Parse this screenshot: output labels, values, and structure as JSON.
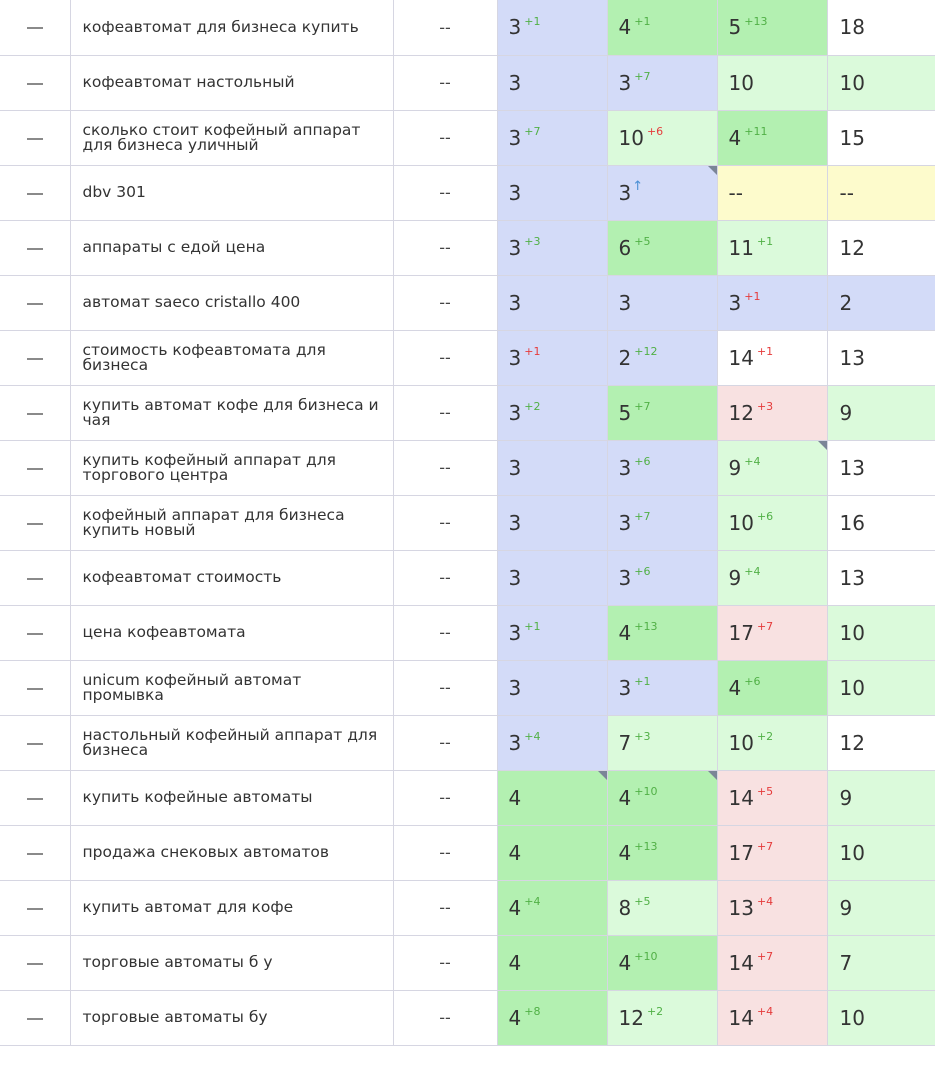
{
  "colors": {
    "blue": "#d3dbf8",
    "green": "#b3f0b1",
    "light_green": "#dbfadb",
    "pink": "#f8e1e1",
    "yellow": "#fdfbcc",
    "up": "#51b046",
    "down": "#e53b3b"
  },
  "rows": [
    {
      "keyword": "кофеавтомат для бизнеса купить",
      "mid": "--",
      "c1": {
        "value": "3",
        "change": "+1",
        "dir": "up",
        "bg": "blue"
      },
      "c2": {
        "value": "4",
        "change": "+1",
        "dir": "up",
        "bg": "green"
      },
      "c3": {
        "value": "5",
        "change": "+13",
        "dir": "up",
        "bg": "green"
      },
      "c4": {
        "value": "18",
        "bg": "white"
      }
    },
    {
      "keyword": "кофеавтомат настольный",
      "mid": "--",
      "c1": {
        "value": "3",
        "change": "",
        "dir": "",
        "bg": "blue"
      },
      "c2": {
        "value": "3",
        "change": "+7",
        "dir": "up",
        "bg": "blue"
      },
      "c3": {
        "value": "10",
        "change": "",
        "dir": "",
        "bg": "light_green"
      },
      "c4": {
        "value": "10",
        "bg": "light_green"
      }
    },
    {
      "keyword": "сколько стоит кофейный аппарат для бизнеса уличный",
      "mid": "--",
      "c1": {
        "value": "3",
        "change": "+7",
        "dir": "up",
        "bg": "blue"
      },
      "c2": {
        "value": "10",
        "change": "+6",
        "dir": "down",
        "bg": "light_green"
      },
      "c3": {
        "value": "4",
        "change": "+11",
        "dir": "up",
        "bg": "green"
      },
      "c4": {
        "value": "15",
        "bg": "white"
      }
    },
    {
      "keyword": "dbv 301",
      "mid": "--",
      "c1": {
        "value": "3",
        "change": "",
        "dir": "",
        "bg": "blue"
      },
      "c2": {
        "value": "3",
        "change": "↑",
        "dir": "new",
        "bg": "blue",
        "corner": true
      },
      "c3": {
        "value": "--",
        "change": "",
        "dir": "",
        "bg": "yellow"
      },
      "c4": {
        "value": "--",
        "bg": "yellow"
      }
    },
    {
      "keyword": "аппараты с едой цена",
      "mid": "--",
      "c1": {
        "value": "3",
        "change": "+3",
        "dir": "up",
        "bg": "blue"
      },
      "c2": {
        "value": "6",
        "change": "+5",
        "dir": "up",
        "bg": "green"
      },
      "c3": {
        "value": "11",
        "change": "+1",
        "dir": "up",
        "bg": "light_green"
      },
      "c4": {
        "value": "12",
        "bg": "white"
      }
    },
    {
      "keyword": "автомат saeco cristallo 400",
      "mid": "--",
      "c1": {
        "value": "3",
        "change": "",
        "dir": "",
        "bg": "blue"
      },
      "c2": {
        "value": "3",
        "change": "",
        "dir": "",
        "bg": "blue"
      },
      "c3": {
        "value": "3",
        "change": "+1",
        "dir": "down",
        "bg": "blue"
      },
      "c4": {
        "value": "2",
        "bg": "blue"
      }
    },
    {
      "keyword": "стоимость кофеавтомата для бизнеса",
      "mid": "--",
      "c1": {
        "value": "3",
        "change": "+1",
        "dir": "down",
        "bg": "blue"
      },
      "c2": {
        "value": "2",
        "change": "+12",
        "dir": "up",
        "bg": "blue"
      },
      "c3": {
        "value": "14",
        "change": "+1",
        "dir": "down",
        "bg": "white"
      },
      "c4": {
        "value": "13",
        "bg": "white"
      }
    },
    {
      "keyword": "купить автомат кофе для бизнеса и чая",
      "mid": "--",
      "c1": {
        "value": "3",
        "change": "+2",
        "dir": "up",
        "bg": "blue"
      },
      "c2": {
        "value": "5",
        "change": "+7",
        "dir": "up",
        "bg": "green"
      },
      "c3": {
        "value": "12",
        "change": "+3",
        "dir": "down",
        "bg": "pink"
      },
      "c4": {
        "value": "9",
        "bg": "light_green"
      }
    },
    {
      "keyword": "купить кофейный аппарат для торгового центра",
      "mid": "--",
      "c1": {
        "value": "3",
        "change": "",
        "dir": "",
        "bg": "blue"
      },
      "c2": {
        "value": "3",
        "change": "+6",
        "dir": "up",
        "bg": "blue"
      },
      "c3": {
        "value": "9",
        "change": "+4",
        "dir": "up",
        "bg": "light_green",
        "corner": true
      },
      "c4": {
        "value": "13",
        "bg": "white"
      }
    },
    {
      "keyword": "кофейный аппарат для бизнеса купить новый",
      "mid": "--",
      "c1": {
        "value": "3",
        "change": "",
        "dir": "",
        "bg": "blue"
      },
      "c2": {
        "value": "3",
        "change": "+7",
        "dir": "up",
        "bg": "blue"
      },
      "c3": {
        "value": "10",
        "change": "+6",
        "dir": "up",
        "bg": "light_green"
      },
      "c4": {
        "value": "16",
        "bg": "white"
      }
    },
    {
      "keyword": "кофеавтомат стоимость",
      "mid": "--",
      "c1": {
        "value": "3",
        "change": "",
        "dir": "",
        "bg": "blue"
      },
      "c2": {
        "value": "3",
        "change": "+6",
        "dir": "up",
        "bg": "blue"
      },
      "c3": {
        "value": "9",
        "change": "+4",
        "dir": "up",
        "bg": "light_green"
      },
      "c4": {
        "value": "13",
        "bg": "white"
      }
    },
    {
      "keyword": "цена кофеавтомата",
      "mid": "--",
      "c1": {
        "value": "3",
        "change": "+1",
        "dir": "up",
        "bg": "blue"
      },
      "c2": {
        "value": "4",
        "change": "+13",
        "dir": "up",
        "bg": "green"
      },
      "c3": {
        "value": "17",
        "change": "+7",
        "dir": "down",
        "bg": "pink"
      },
      "c4": {
        "value": "10",
        "bg": "light_green"
      }
    },
    {
      "keyword": "unicum кофейный автомат промывка",
      "mid": "--",
      "c1": {
        "value": "3",
        "change": "",
        "dir": "",
        "bg": "blue"
      },
      "c2": {
        "value": "3",
        "change": "+1",
        "dir": "up",
        "bg": "blue"
      },
      "c3": {
        "value": "4",
        "change": "+6",
        "dir": "up",
        "bg": "green"
      },
      "c4": {
        "value": "10",
        "bg": "light_green"
      }
    },
    {
      "keyword": "настольный кофейный аппарат для бизнеса",
      "mid": "--",
      "c1": {
        "value": "3",
        "change": "+4",
        "dir": "up",
        "bg": "blue"
      },
      "c2": {
        "value": "7",
        "change": "+3",
        "dir": "up",
        "bg": "light_green"
      },
      "c3": {
        "value": "10",
        "change": "+2",
        "dir": "up",
        "bg": "light_green"
      },
      "c4": {
        "value": "12",
        "bg": "white"
      }
    },
    {
      "keyword": "купить кофейные автоматы",
      "mid": "--",
      "c1": {
        "value": "4",
        "change": "",
        "dir": "",
        "bg": "green",
        "corner": true
      },
      "c2": {
        "value": "4",
        "change": "+10",
        "dir": "up",
        "bg": "green",
        "corner": true
      },
      "c3": {
        "value": "14",
        "change": "+5",
        "dir": "down",
        "bg": "pink"
      },
      "c4": {
        "value": "9",
        "bg": "light_green"
      }
    },
    {
      "keyword": "продажа снековых автоматов",
      "mid": "--",
      "c1": {
        "value": "4",
        "change": "",
        "dir": "",
        "bg": "green"
      },
      "c2": {
        "value": "4",
        "change": "+13",
        "dir": "up",
        "bg": "green"
      },
      "c3": {
        "value": "17",
        "change": "+7",
        "dir": "down",
        "bg": "pink"
      },
      "c4": {
        "value": "10",
        "bg": "light_green"
      }
    },
    {
      "keyword": "купить автомат для кофе",
      "mid": "--",
      "c1": {
        "value": "4",
        "change": "+4",
        "dir": "up",
        "bg": "green"
      },
      "c2": {
        "value": "8",
        "change": "+5",
        "dir": "up",
        "bg": "light_green"
      },
      "c3": {
        "value": "13",
        "change": "+4",
        "dir": "down",
        "bg": "pink"
      },
      "c4": {
        "value": "9",
        "bg": "light_green"
      }
    },
    {
      "keyword": "торговые автоматы б у",
      "mid": "--",
      "c1": {
        "value": "4",
        "change": "",
        "dir": "",
        "bg": "green"
      },
      "c2": {
        "value": "4",
        "change": "+10",
        "dir": "up",
        "bg": "green"
      },
      "c3": {
        "value": "14",
        "change": "+7",
        "dir": "down",
        "bg": "pink"
      },
      "c4": {
        "value": "7",
        "bg": "light_green"
      }
    },
    {
      "keyword": "торговые автоматы бу",
      "mid": "--",
      "c1": {
        "value": "4",
        "change": "+8",
        "dir": "up",
        "bg": "green"
      },
      "c2": {
        "value": "12",
        "change": "+2",
        "dir": "up",
        "bg": "light_green"
      },
      "c3": {
        "value": "14",
        "change": "+4",
        "dir": "down",
        "bg": "pink"
      },
      "c4": {
        "value": "10",
        "bg": "light_green"
      }
    }
  ]
}
